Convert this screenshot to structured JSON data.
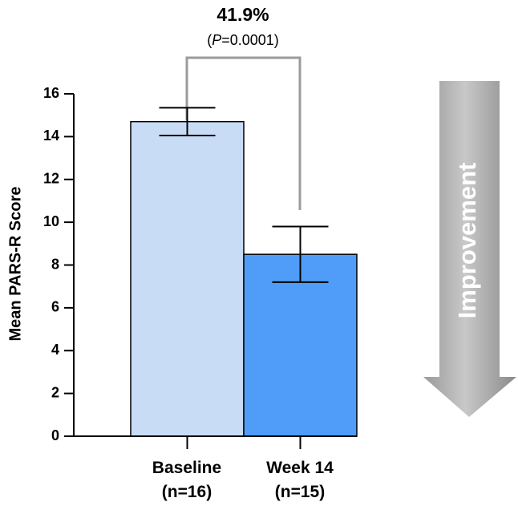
{
  "chart_data": {
    "type": "bar",
    "categories": [
      {
        "line1": "Baseline",
        "line2": "(n=16)"
      },
      {
        "line1": "Week 14",
        "line2": "(n=15)"
      }
    ],
    "values": [
      14.7,
      8.5
    ],
    "errors": [
      {
        "low": 14.05,
        "high": 15.35
      },
      {
        "low": 7.2,
        "high": 9.8
      }
    ],
    "colors": [
      "#c9dcf5",
      "#4f9df8"
    ],
    "ylabel": "Mean PARS-R Score",
    "ylim": [
      0,
      16
    ],
    "yticks": [
      0,
      2,
      4,
      6,
      8,
      10,
      12,
      14,
      16
    ],
    "annotation": {
      "percent": "41.9%",
      "p_open": "(",
      "p_symbol": "P",
      "p_rest": "=0.0001)"
    },
    "arrow_label": "Improvement",
    "grid": false
  }
}
